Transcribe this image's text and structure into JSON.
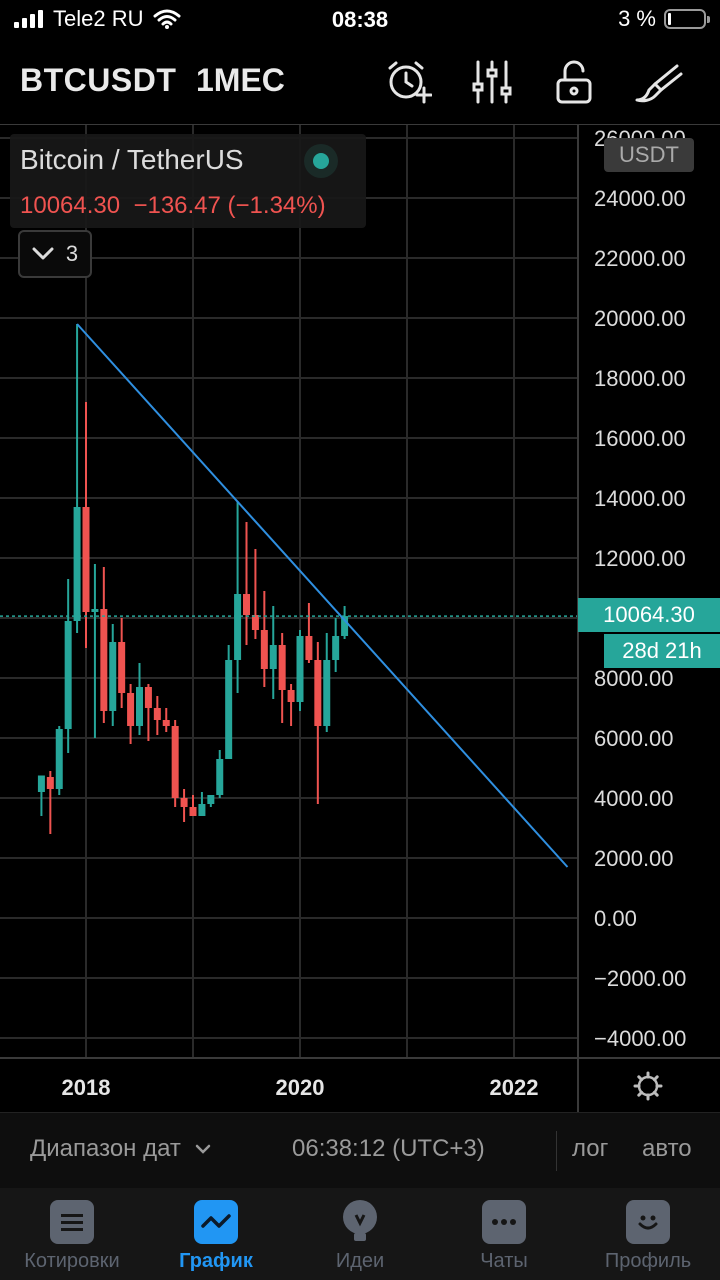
{
  "status_bar": {
    "carrier": "Tele2 RU",
    "time": "08:38",
    "battery_pct": "3 %"
  },
  "toolbar": {
    "symbol": "BTCUSDT",
    "interval": "1МЕС",
    "icons": [
      "alarm-add-icon",
      "indicators-icon",
      "lock-icon",
      "drawing-brush-icon"
    ]
  },
  "legend": {
    "title": "Bitcoin / TetherUS",
    "last": "10064.30",
    "change": "−136.47",
    "change_pct": "(−1.34%)",
    "collapse_count": "3"
  },
  "price_scale": {
    "unit": "USDT",
    "current_price": "10064.30",
    "countdown": "28d 21h"
  },
  "chart_data": {
    "type": "candlestick",
    "symbol": "BTCUSDT",
    "interval": "1 month",
    "y_ticks": [
      "26000.00",
      "24000.00",
      "22000.00",
      "20000.00",
      "18000.00",
      "16000.00",
      "14000.00",
      "12000.00",
      "10064.30",
      "8000.00",
      "6000.00",
      "4000.00",
      "2000.00",
      "0.00",
      "−2000.00",
      "−4000.00"
    ],
    "x_ticks": [
      "2018",
      "2020",
      "2022"
    ],
    "ylim": [
      -4600,
      26100
    ],
    "grid": true,
    "candles": [
      {
        "t": "2017-08",
        "o": 4200,
        "h": 4700,
        "l": 3400,
        "c": 4750
      },
      {
        "t": "2017-09",
        "o": 4700,
        "h": 4900,
        "l": 2800,
        "c": 4300
      },
      {
        "t": "2017-10",
        "o": 4300,
        "h": 6400,
        "l": 4100,
        "c": 6300
      },
      {
        "t": "2017-11",
        "o": 6300,
        "h": 11300,
        "l": 5500,
        "c": 9900
      },
      {
        "t": "2017-12",
        "o": 9900,
        "h": 19800,
        "l": 9500,
        "c": 13700
      },
      {
        "t": "2018-01",
        "o": 13700,
        "h": 17200,
        "l": 9000,
        "c": 10200
      },
      {
        "t": "2018-02",
        "o": 10200,
        "h": 11800,
        "l": 6000,
        "c": 10300
      },
      {
        "t": "2018-03",
        "o": 10300,
        "h": 11700,
        "l": 6500,
        "c": 6900
      },
      {
        "t": "2018-04",
        "o": 6900,
        "h": 9800,
        "l": 6400,
        "c": 9200
      },
      {
        "t": "2018-05",
        "o": 9200,
        "h": 10000,
        "l": 7000,
        "c": 7500
      },
      {
        "t": "2018-06",
        "o": 7500,
        "h": 7800,
        "l": 5800,
        "c": 6400
      },
      {
        "t": "2018-07",
        "o": 6400,
        "h": 8500,
        "l": 6100,
        "c": 7700
      },
      {
        "t": "2018-08",
        "o": 7700,
        "h": 7800,
        "l": 5900,
        "c": 7000
      },
      {
        "t": "2018-09",
        "o": 7000,
        "h": 7400,
        "l": 6100,
        "c": 6600
      },
      {
        "t": "2018-10",
        "o": 6600,
        "h": 7000,
        "l": 6200,
        "c": 6400
      },
      {
        "t": "2018-11",
        "o": 6400,
        "h": 6600,
        "l": 3700,
        "c": 4000
      },
      {
        "t": "2018-12",
        "o": 4000,
        "h": 4300,
        "l": 3200,
        "c": 3700
      },
      {
        "t": "2019-01",
        "o": 3700,
        "h": 4100,
        "l": 3400,
        "c": 3400
      },
      {
        "t": "2019-02",
        "o": 3400,
        "h": 4200,
        "l": 3400,
        "c": 3800
      },
      {
        "t": "2019-03",
        "o": 3800,
        "h": 4100,
        "l": 3700,
        "c": 4100
      },
      {
        "t": "2019-04",
        "o": 4100,
        "h": 5600,
        "l": 4000,
        "c": 5300
      },
      {
        "t": "2019-05",
        "o": 5300,
        "h": 9100,
        "l": 5300,
        "c": 8600
      },
      {
        "t": "2019-06",
        "o": 8600,
        "h": 13900,
        "l": 7500,
        "c": 10800
      },
      {
        "t": "2019-07",
        "o": 10800,
        "h": 13200,
        "l": 9100,
        "c": 10100
      },
      {
        "t": "2019-08",
        "o": 10100,
        "h": 12300,
        "l": 9300,
        "c": 9600
      },
      {
        "t": "2019-09",
        "o": 9600,
        "h": 10900,
        "l": 7700,
        "c": 8300
      },
      {
        "t": "2019-10",
        "o": 8300,
        "h": 10400,
        "l": 7300,
        "c": 9100
      },
      {
        "t": "2019-11",
        "o": 9100,
        "h": 9500,
        "l": 6500,
        "c": 7600
      },
      {
        "t": "2019-12",
        "o": 7600,
        "h": 7800,
        "l": 6400,
        "c": 7200
      },
      {
        "t": "2020-01",
        "o": 7200,
        "h": 9600,
        "l": 6900,
        "c": 9400
      },
      {
        "t": "2020-02",
        "o": 9400,
        "h": 10500,
        "l": 8500,
        "c": 8600
      },
      {
        "t": "2020-03",
        "o": 8600,
        "h": 9200,
        "l": 3800,
        "c": 6400
      },
      {
        "t": "2020-04",
        "o": 6400,
        "h": 9500,
        "l": 6200,
        "c": 8600
      },
      {
        "t": "2020-05",
        "o": 8600,
        "h": 10000,
        "l": 8200,
        "c": 9400
      },
      {
        "t": "2020-06",
        "o": 9400,
        "h": 10400,
        "l": 9300,
        "c": 10064.3
      }
    ],
    "trendline": {
      "from": {
        "t": "2017-12",
        "price": 19800
      },
      "to": {
        "t": "2022-07",
        "price": 1700
      }
    },
    "colors": {
      "up": "#26a69a",
      "down": "#ef5350",
      "trendline": "#2f8fe0",
      "grid": "#2a2a2a"
    }
  },
  "bottom_bar": {
    "date_range": "Диапазон дат",
    "clock": "06:38:12 (UTC+3)",
    "log": "лог",
    "auto": "авто"
  },
  "tabs": [
    {
      "label": "Котировки",
      "icon": "quotes-icon"
    },
    {
      "label": "График",
      "icon": "chart-icon"
    },
    {
      "label": "Идеи",
      "icon": "ideas-bulb-icon"
    },
    {
      "label": "Чаты",
      "icon": "chats-icon"
    },
    {
      "label": "Профиль",
      "icon": "profile-icon"
    }
  ],
  "active_tab": "График"
}
